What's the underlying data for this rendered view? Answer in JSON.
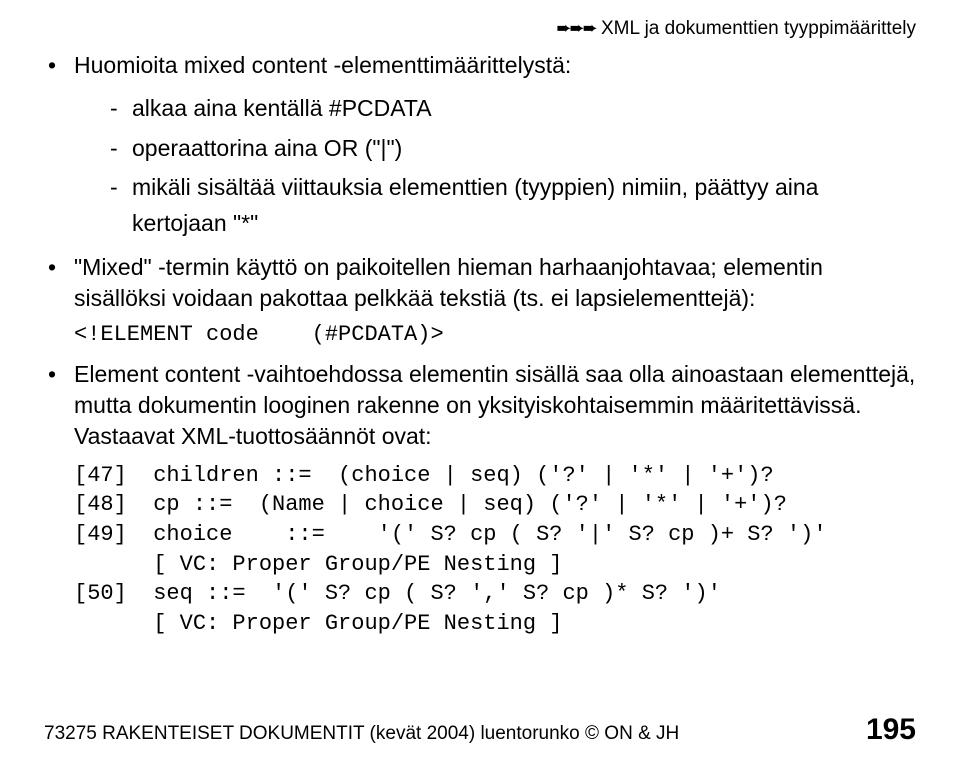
{
  "header": {
    "arrow_glyph": "➨",
    "title": "XML ja dokumenttien tyyppimäärittely"
  },
  "bullets": {
    "b1": {
      "text": "Huomioita mixed content -elementtimäärittelystä:",
      "sub": [
        "alkaa aina kentällä #PCDATA",
        "operaattorina aina OR (\"|\")",
        "mikäli sisältää viittauksia elementtien (tyyppien) nimiin, päättyy aina kertojaan \"*\""
      ]
    },
    "b2": {
      "text": "\"Mixed\" -termin käyttö on paikoitellen hieman harhaanjohtavaa; elementin sisällöksi voidaan pakottaa pelkkää tekstiä (ts. ei lapsielementtejä):",
      "code": "<!ELEMENT code    (#PCDATA)>"
    },
    "b3": {
      "text": "Element content -vaihtoehdossa elementin sisällä saa olla ainoastaan elementtejä, mutta dokumentin looginen rakenne on yksityiskohtaisemmin määritettävissä. Vastaavat XML-tuottosäännöt ovat:",
      "code": "[47]  children ::=  (choice | seq) ('?' | '*' | '+')?\n[48]  cp ::=  (Name | choice | seq) ('?' | '*' | '+')?\n[49]  choice    ::=    '(' S? cp ( S? '|' S? cp )+ S? ')'\n      [ VC: Proper Group/PE Nesting ]\n[50]  seq ::=  '(' S? cp ( S? ',' S? cp )* S? ')'\n      [ VC: Proper Group/PE Nesting ]"
    }
  },
  "footer": {
    "left_part1": "73275 RAKENTEISET DOKUMENTIT (kevät 2004) luentorunko ",
    "copyright": "©",
    "left_part2": " ON & JH",
    "page": "195"
  },
  "style": {
    "header_title_fontsize": 19,
    "body_fontsize": 23,
    "mono_fontsize": 22,
    "footer_fontsize": 19,
    "pagenum_fontsize": 30,
    "text_color": "#000000",
    "background_color": "#ffffff"
  }
}
